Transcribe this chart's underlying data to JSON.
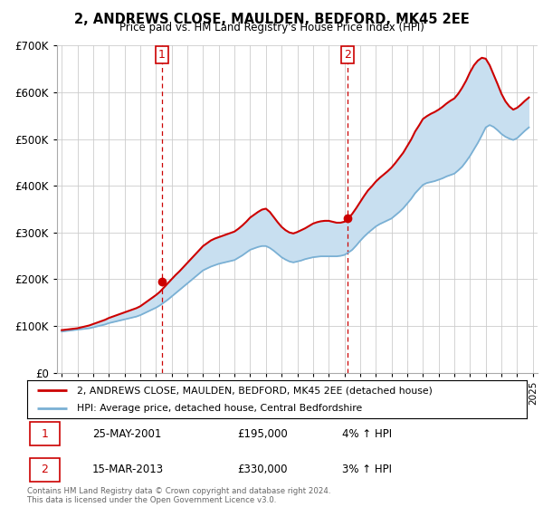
{
  "title": "2, ANDREWS CLOSE, MAULDEN, BEDFORD, MK45 2EE",
  "subtitle": "Price paid vs. HM Land Registry's House Price Index (HPI)",
  "legend_line1": "2, ANDREWS CLOSE, MAULDEN, BEDFORD, MK45 2EE (detached house)",
  "legend_line2": "HPI: Average price, detached house, Central Bedfordshire",
  "footnote": "Contains HM Land Registry data © Crown copyright and database right 2024.\nThis data is licensed under the Open Government Licence v3.0.",
  "sale1_label": "1",
  "sale1_date": "25-MAY-2001",
  "sale1_price": "£195,000",
  "sale1_hpi": "4% ↑ HPI",
  "sale2_label": "2",
  "sale2_date": "15-MAR-2013",
  "sale2_price": "£330,000",
  "sale2_hpi": "3% ↑ HPI",
  "hpi_color": "#7ab0d4",
  "price_color": "#cc0000",
  "fill_color": "#c8dff0",
  "sale_marker_color": "#cc0000",
  "background_color": "#ffffff",
  "grid_color": "#cccccc",
  "ylim": [
    0,
    700000
  ],
  "yticks": [
    0,
    100000,
    200000,
    300000,
    400000,
    500000,
    600000,
    700000
  ],
  "sale1_x": 2001.38,
  "sale1_y": 195000,
  "sale2_x": 2013.21,
  "sale2_y": 330000,
  "vline1_x": 2001.38,
  "vline2_x": 2013.21,
  "hpi_years": [
    1995,
    1995.25,
    1995.5,
    1995.75,
    1996,
    1996.25,
    1996.5,
    1996.75,
    1997,
    1997.25,
    1997.5,
    1997.75,
    1998,
    1998.25,
    1998.5,
    1998.75,
    1999,
    1999.25,
    1999.5,
    1999.75,
    2000,
    2000.25,
    2000.5,
    2000.75,
    2001,
    2001.25,
    2001.5,
    2001.75,
    2002,
    2002.25,
    2002.5,
    2002.75,
    2003,
    2003.25,
    2003.5,
    2003.75,
    2004,
    2004.25,
    2004.5,
    2004.75,
    2005,
    2005.25,
    2005.5,
    2005.75,
    2006,
    2006.25,
    2006.5,
    2006.75,
    2007,
    2007.25,
    2007.5,
    2007.75,
    2008,
    2008.25,
    2008.5,
    2008.75,
    2009,
    2009.25,
    2009.5,
    2009.75,
    2010,
    2010.25,
    2010.5,
    2010.75,
    2011,
    2011.25,
    2011.5,
    2011.75,
    2012,
    2012.25,
    2012.5,
    2012.75,
    2013,
    2013.25,
    2013.5,
    2013.75,
    2014,
    2014.25,
    2014.5,
    2014.75,
    2015,
    2015.25,
    2015.5,
    2015.75,
    2016,
    2016.25,
    2016.5,
    2016.75,
    2017,
    2017.25,
    2017.5,
    2017.75,
    2018,
    2018.25,
    2018.5,
    2018.75,
    2019,
    2019.25,
    2019.5,
    2019.75,
    2020,
    2020.25,
    2020.5,
    2020.75,
    2021,
    2021.25,
    2021.5,
    2021.75,
    2022,
    2022.25,
    2022.5,
    2022.75,
    2023,
    2023.25,
    2023.5,
    2023.75,
    2024,
    2024.25,
    2024.5,
    2024.75
  ],
  "hpi_values": [
    88000,
    89000,
    90000,
    91000,
    92000,
    93000,
    94000,
    95000,
    97000,
    99000,
    101000,
    103000,
    106000,
    108000,
    110000,
    112000,
    114000,
    116000,
    118000,
    120000,
    123000,
    127000,
    131000,
    135000,
    139000,
    144000,
    150000,
    156000,
    163000,
    170000,
    177000,
    184000,
    191000,
    198000,
    205000,
    212000,
    219000,
    223000,
    227000,
    230000,
    233000,
    235000,
    237000,
    239000,
    241000,
    246000,
    251000,
    257000,
    263000,
    266000,
    269000,
    271000,
    271000,
    267000,
    261000,
    254000,
    247000,
    242000,
    238000,
    236000,
    238000,
    240000,
    243000,
    245000,
    247000,
    248000,
    249000,
    249000,
    249000,
    249000,
    249000,
    250000,
    252000,
    257000,
    263000,
    272000,
    282000,
    291000,
    299000,
    306000,
    313000,
    318000,
    322000,
    326000,
    330000,
    337000,
    344000,
    352000,
    362000,
    372000,
    384000,
    393000,
    402000,
    406000,
    408000,
    410000,
    413000,
    416000,
    420000,
    423000,
    426000,
    433000,
    441000,
    452000,
    464000,
    478000,
    492000,
    508000,
    525000,
    530000,
    526000,
    519000,
    511000,
    505000,
    501000,
    498000,
    502000,
    510000,
    518000,
    525000
  ],
  "price_years": [
    1995,
    1995.25,
    1995.5,
    1995.75,
    1996,
    1996.25,
    1996.5,
    1996.75,
    1997,
    1997.25,
    1997.5,
    1997.75,
    1998,
    1998.25,
    1998.5,
    1998.75,
    1999,
    1999.25,
    1999.5,
    1999.75,
    2000,
    2000.25,
    2000.5,
    2000.75,
    2001,
    2001.25,
    2001.5,
    2001.75,
    2002,
    2002.25,
    2002.5,
    2002.75,
    2003,
    2003.25,
    2003.5,
    2003.75,
    2004,
    2004.25,
    2004.5,
    2004.75,
    2005,
    2005.25,
    2005.5,
    2005.75,
    2006,
    2006.25,
    2006.5,
    2006.75,
    2007,
    2007.25,
    2007.5,
    2007.75,
    2008,
    2008.25,
    2008.5,
    2008.75,
    2009,
    2009.25,
    2009.5,
    2009.75,
    2010,
    2010.25,
    2010.5,
    2010.75,
    2011,
    2011.25,
    2011.5,
    2011.75,
    2012,
    2012.25,
    2012.5,
    2012.75,
    2013,
    2013.25,
    2013.5,
    2013.75,
    2014,
    2014.25,
    2014.5,
    2014.75,
    2015,
    2015.25,
    2015.5,
    2015.75,
    2016,
    2016.25,
    2016.5,
    2016.75,
    2017,
    2017.25,
    2017.5,
    2017.75,
    2018,
    2018.25,
    2018.5,
    2018.75,
    2019,
    2019.25,
    2019.5,
    2019.75,
    2020,
    2020.25,
    2020.5,
    2020.75,
    2021,
    2021.25,
    2021.5,
    2021.75,
    2022,
    2022.25,
    2022.5,
    2022.75,
    2023,
    2023.25,
    2023.5,
    2023.75,
    2024,
    2024.25,
    2024.5,
    2024.75
  ],
  "price_values": [
    91000,
    92000,
    93000,
    94000,
    95000,
    97000,
    99000,
    101000,
    104000,
    107000,
    110000,
    113000,
    117000,
    120000,
    123000,
    126000,
    129000,
    132000,
    135000,
    138000,
    142000,
    148000,
    154000,
    160000,
    166000,
    173000,
    182000,
    191000,
    200000,
    209000,
    217000,
    226000,
    235000,
    244000,
    253000,
    262000,
    271000,
    277000,
    283000,
    287000,
    290000,
    293000,
    296000,
    299000,
    302000,
    308000,
    315000,
    323000,
    332000,
    338000,
    344000,
    349000,
    351000,
    344000,
    333000,
    322000,
    312000,
    305000,
    300000,
    298000,
    301000,
    305000,
    309000,
    314000,
    319000,
    322000,
    324000,
    325000,
    325000,
    323000,
    321000,
    321000,
    323000,
    330000,
    340000,
    352000,
    365000,
    378000,
    390000,
    399000,
    409000,
    417000,
    424000,
    431000,
    439000,
    449000,
    460000,
    471000,
    485000,
    499000,
    516000,
    529000,
    543000,
    549000,
    554000,
    558000,
    563000,
    569000,
    576000,
    582000,
    587000,
    597000,
    610000,
    625000,
    643000,
    658000,
    668000,
    674000,
    672000,
    658000,
    638000,
    618000,
    597000,
    581000,
    570000,
    563000,
    567000,
    574000,
    582000,
    589000
  ],
  "xlim_left": 1994.7,
  "xlim_right": 2025.3,
  "xticks": [
    1995,
    1996,
    1997,
    1998,
    1999,
    2000,
    2001,
    2002,
    2003,
    2004,
    2005,
    2006,
    2007,
    2008,
    2009,
    2010,
    2011,
    2012,
    2013,
    2014,
    2015,
    2016,
    2017,
    2018,
    2019,
    2020,
    2021,
    2022,
    2023,
    2024,
    2025
  ]
}
